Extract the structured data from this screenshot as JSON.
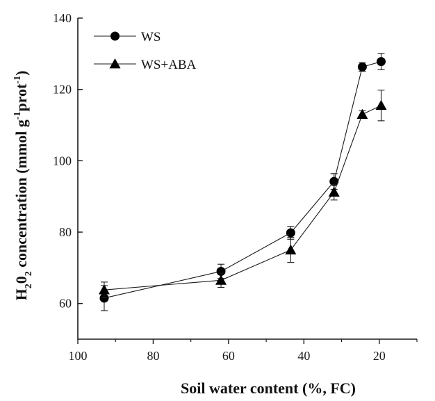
{
  "chart_data": {
    "type": "line",
    "xlabel": "Soil water content (%, FC)",
    "ylabel": {
      "parts": [
        "H",
        "2",
        "0",
        "2",
        " concentration (mmol g",
        "-1",
        "prot",
        "-1",
        ")"
      ]
    },
    "xlim": [
      100,
      10
    ],
    "ylim": [
      50,
      140
    ],
    "x_ticks": [
      100,
      80,
      60,
      40,
      20
    ],
    "y_ticks": [
      60,
      80,
      100,
      120,
      140
    ],
    "x": [
      93,
      62,
      43.5,
      32,
      24.5,
      19.5
    ],
    "series": [
      {
        "name": "WS",
        "marker": "circle",
        "values": [
          61.5,
          69,
          79.8,
          94.2,
          126.3,
          127.8
        ],
        "errors": [
          3.5,
          2,
          1.8,
          2.2,
          1.2,
          2.3
        ]
      },
      {
        "name": "WS+ABA",
        "marker": "triangle",
        "values": [
          63.8,
          66.5,
          75,
          91.2,
          113,
          115.5
        ],
        "errors": [
          2.2,
          2,
          3.5,
          2.2,
          1,
          4.3
        ]
      }
    ],
    "legend_position": "top-left",
    "grid": false,
    "colors": {
      "line": "#1a1a1a",
      "marker": "#000000"
    }
  }
}
